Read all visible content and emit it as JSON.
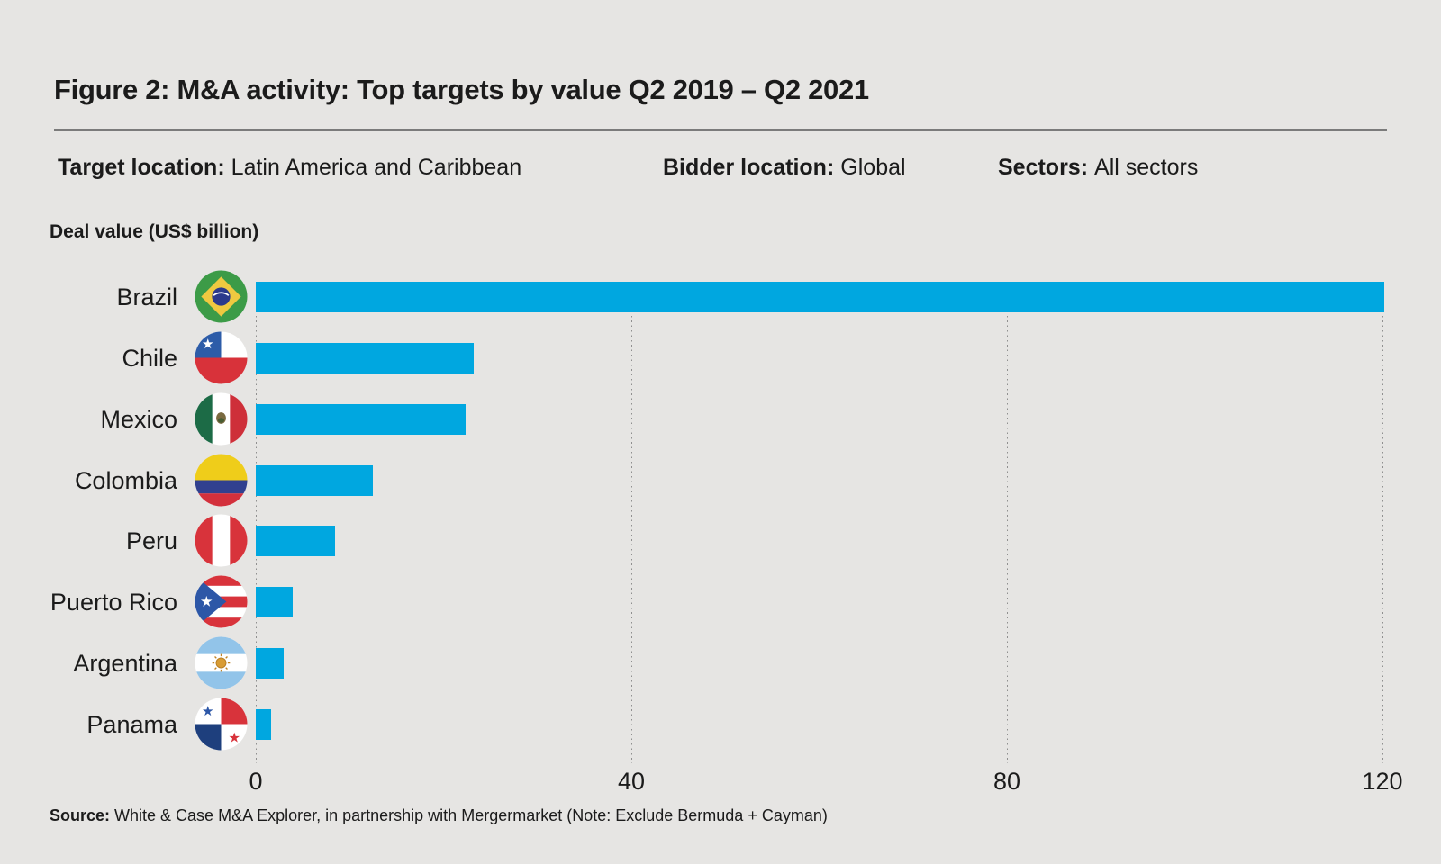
{
  "figure": {
    "title": "Figure 2: M&A activity: Top targets by value Q2 2019 – Q2 2021",
    "meta": [
      {
        "label": "Target location:",
        "value": "Latin America and Caribbean"
      },
      {
        "label": "Bidder location:",
        "value": "Global"
      },
      {
        "label": "Sectors:",
        "value": "All sectors"
      }
    ],
    "source": {
      "label": "Source:",
      "text": "White & Case M&A Explorer, in partnership with Mergermarket (Note: Exclude Bermuda + Cayman)"
    }
  },
  "colors": {
    "background": "#e6e5e3",
    "bar": "#00a7e0",
    "text": "#1b1b1b",
    "rule": "#7b7b7b",
    "gridline": "#8f8f8f"
  },
  "chart_data": {
    "type": "bar",
    "orientation": "horizontal",
    "title": "Figure 2: M&A activity: Top targets by value Q2 2019 – Q2 2021",
    "xlabel": "Deal value (US$ billion)",
    "categories": [
      "Brazil",
      "Chile",
      "Mexico",
      "Colombia",
      "Peru",
      "Puerto Rico",
      "Argentina",
      "Panama"
    ],
    "values": [
      120.2,
      23.2,
      22.3,
      12.5,
      8.4,
      3.9,
      3.0,
      1.6
    ],
    "flag_icons": [
      "flag-brazil-icon",
      "flag-chile-icon",
      "flag-mexico-icon",
      "flag-colombia-icon",
      "flag-peru-icon",
      "flag-puerto-rico-icon",
      "flag-argentina-icon",
      "flag-panama-icon"
    ],
    "xlim": [
      0,
      120
    ],
    "xticks": [
      "0",
      "40",
      "80",
      "120"
    ],
    "grid": "dotted-vertical",
    "legend": "none",
    "bar_color": "#00a7e0"
  }
}
